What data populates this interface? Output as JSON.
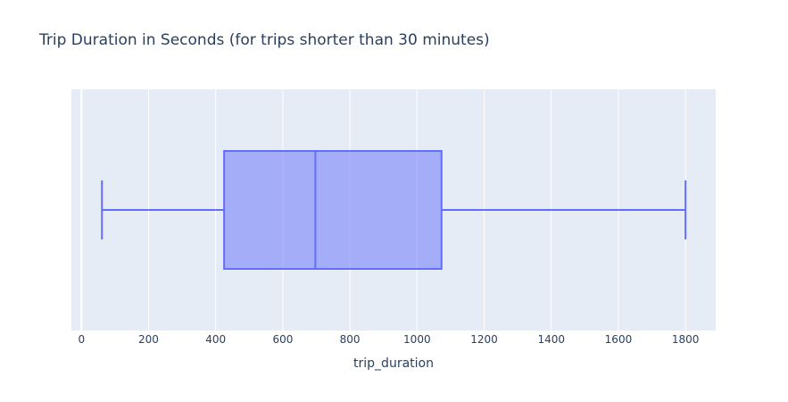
{
  "chart_data": {
    "type": "box",
    "title": "Trip Duration in Seconds (for trips shorter than 30 minutes)",
    "xlabel": "trip_duration",
    "ylabel": "",
    "orientation": "horizontal",
    "xlim": [
      -30,
      1890
    ],
    "xticks": [
      0,
      200,
      400,
      600,
      800,
      1000,
      1200,
      1400,
      1600,
      1800
    ],
    "xtick_labels": [
      "0",
      "200",
      "400",
      "600",
      "800",
      "1000",
      "1200",
      "1400",
      "1600",
      "1800"
    ],
    "grid": true,
    "legend": false,
    "box": {
      "min": 61,
      "q1": 425,
      "median": 697,
      "q3": 1073,
      "max": 1800
    }
  },
  "colors": {
    "plot_background": "#e5ecf6",
    "grid": "#ffffff",
    "box_line": "#636efa",
    "box_fill": "rgba(99,110,250,0.5)",
    "text": "#2a3f5f"
  }
}
